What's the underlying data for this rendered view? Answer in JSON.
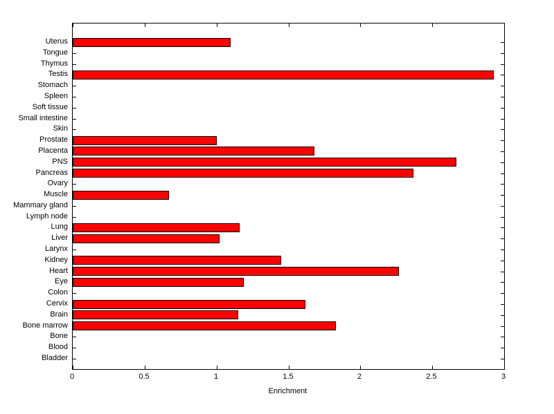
{
  "chart_data": {
    "type": "bar",
    "orientation": "horizontal",
    "title": "",
    "xlabel": "Enrichment",
    "ylabel": "",
    "xlim": [
      0,
      3
    ],
    "xtick_labels": [
      "0",
      "0.5",
      "1",
      "1.5",
      "2",
      "2.5",
      "3"
    ],
    "xtick_values": [
      0,
      0.5,
      1,
      1.5,
      2,
      2.5,
      3
    ],
    "grid": false,
    "legend": "none",
    "bar_color": "#ff0000",
    "bar_edge_color": "#000000",
    "categories": [
      "Uterus",
      "Tongue",
      "Thymus",
      "Testis",
      "Stomach",
      "Spleen",
      "Soft tissue",
      "Small intestine",
      "Skin",
      "Prostate",
      "Placenta",
      "PNS",
      "Pancreas",
      "Ovary",
      "Muscle",
      "Mammary gland",
      "Lymph node",
      "Lung",
      "Liver",
      "Larynx",
      "Kidney",
      "Heart",
      "Eye",
      "Colon",
      "Cervix",
      "Brain",
      "Bone marrow",
      "Bone",
      "Blood",
      "Bladder"
    ],
    "values": [
      1.1,
      0,
      0,
      2.93,
      0,
      0,
      0,
      0,
      0,
      1.0,
      1.68,
      2.67,
      2.37,
      0,
      0.67,
      0,
      0,
      1.16,
      1.02,
      0,
      1.45,
      2.27,
      1.19,
      0,
      1.62,
      1.15,
      1.83,
      0,
      0,
      0
    ]
  }
}
